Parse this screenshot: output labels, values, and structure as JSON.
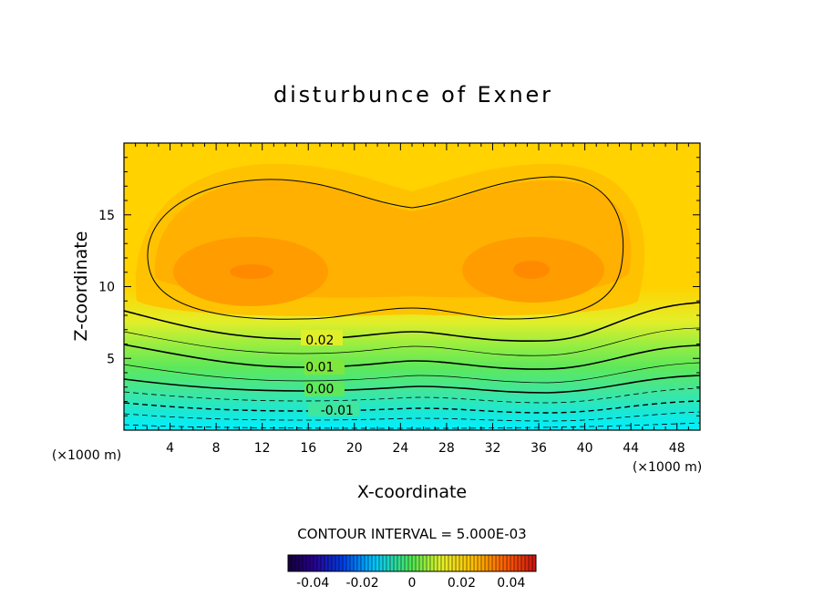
{
  "chart_data": {
    "type": "contour",
    "title": "disturbunce of Exner",
    "xlabel": "X-coordinate",
    "ylabel": "Z-coordinate",
    "x_unit": "(×1000 m)",
    "y_unit": "(×1000 m)",
    "xlim": [
      0,
      50
    ],
    "ylim": [
      0,
      20
    ],
    "x_ticks": [
      4,
      8,
      12,
      16,
      20,
      24,
      28,
      32,
      36,
      40,
      44,
      48
    ],
    "y_ticks": [
      5,
      10,
      15
    ],
    "contour_interval_text": "CONTOUR INTERVAL = 5.000E-03",
    "contour_labels": [
      {
        "text": "0.02",
        "x": 17,
        "y": 6.3
      },
      {
        "text": "0.01",
        "x": 17,
        "y": 4.4
      },
      {
        "text": "0.00",
        "x": 17,
        "y": 2.9
      },
      {
        "text": "-0.01",
        "x": 18.5,
        "y": 1.4
      }
    ],
    "maxima": [
      {
        "x": 11,
        "z": 11
      },
      {
        "x": 35,
        "z": 11.2
      }
    ],
    "colorbar": {
      "range": [
        -0.05,
        0.05
      ],
      "tick_labels": [
        "-0.04",
        "-0.02",
        "0",
        "0.02",
        "0.04"
      ],
      "tick_values": [
        -0.04,
        -0.02,
        0,
        0.02,
        0.04
      ]
    }
  }
}
